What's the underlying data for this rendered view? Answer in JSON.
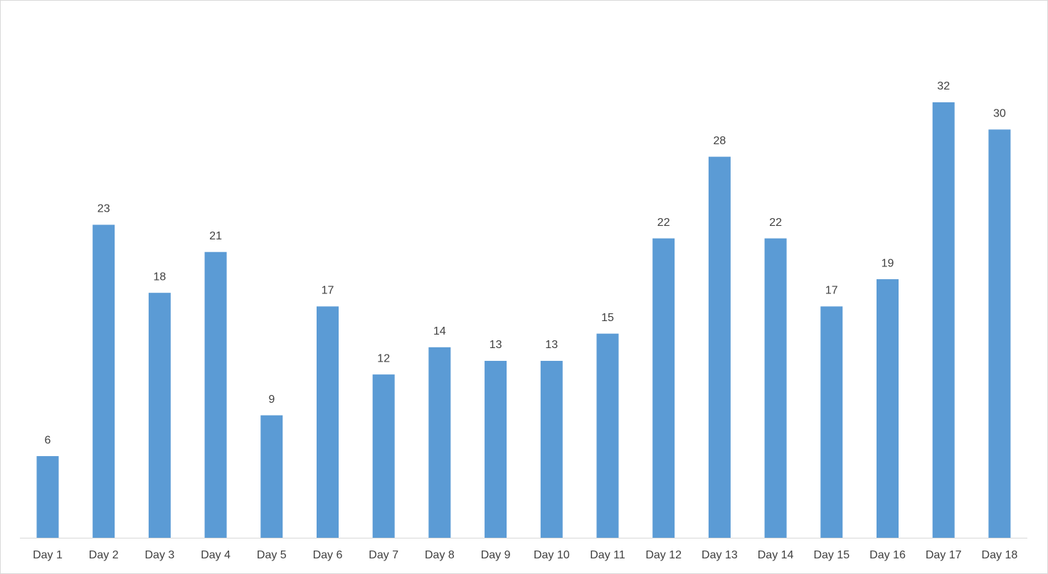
{
  "chart_data": {
    "type": "bar",
    "categories": [
      "Day 1",
      "Day 2",
      "Day 3",
      "Day 4",
      "Day 5",
      "Day 6",
      "Day 7",
      "Day 8",
      "Day 9",
      "Day 10",
      "Day 11",
      "Day 12",
      "Day 13",
      "Day 14",
      "Day 15",
      "Day 16",
      "Day 17",
      "Day 18"
    ],
    "values": [
      6,
      23,
      18,
      21,
      9,
      17,
      12,
      14,
      13,
      13,
      15,
      22,
      28,
      22,
      17,
      19,
      32,
      30
    ],
    "color": "#5b9bd5"
  }
}
